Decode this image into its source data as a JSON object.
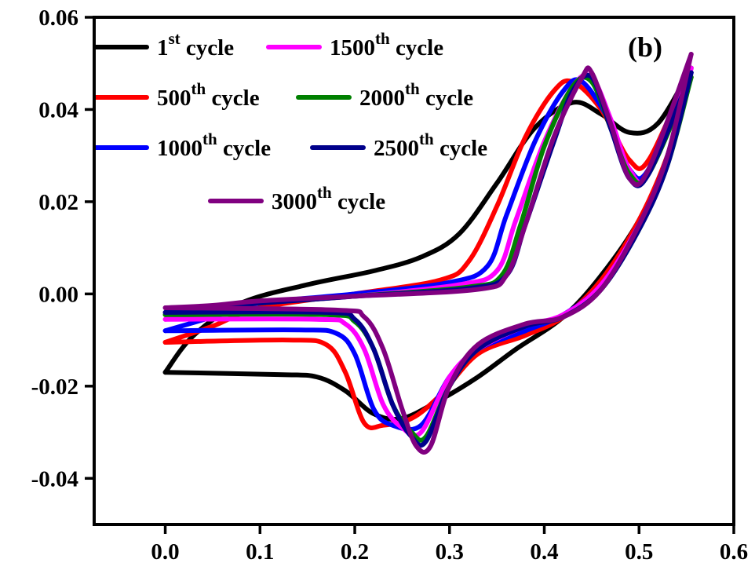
{
  "chart_data": {
    "type": "line",
    "title": "",
    "xlabel": "",
    "ylabel": "",
    "panel_label": "(b)",
    "xlim": [
      -0.075,
      0.6
    ],
    "ylim": [
      -0.05,
      0.06
    ],
    "x_ticks": [
      0.0,
      0.1,
      0.2,
      0.3,
      0.4,
      0.5,
      0.6
    ],
    "x_tick_labels": [
      "0.0",
      "0.1",
      "0.2",
      "0.3",
      "0.4",
      "0.5",
      "0.6"
    ],
    "y_ticks": [
      0.06,
      0.04,
      0.02,
      0.0,
      -0.02,
      -0.04
    ],
    "y_tick_labels": [
      "0.06",
      "0.04",
      "0.02",
      "0.00",
      "-0.02",
      "-0.04"
    ],
    "grid": false,
    "legend_position": "top-left",
    "series": [
      {
        "name": "1st cycle",
        "base": "1",
        "sup": "st",
        "color": "#000000",
        "upper": [
          [
            0.0,
            -0.017
          ],
          [
            0.03,
            -0.009
          ],
          [
            0.08,
            -0.002
          ],
          [
            0.15,
            0.002
          ],
          [
            0.22,
            0.005
          ],
          [
            0.27,
            0.008
          ],
          [
            0.31,
            0.013
          ],
          [
            0.35,
            0.024
          ],
          [
            0.39,
            0.036
          ],
          [
            0.43,
            0.0415
          ],
          [
            0.46,
            0.039
          ],
          [
            0.49,
            0.035
          ],
          [
            0.52,
            0.037
          ],
          [
            0.555,
            0.049
          ]
        ],
        "lower": [
          [
            0.0,
            -0.017
          ],
          [
            0.12,
            -0.0175
          ],
          [
            0.16,
            -0.018
          ],
          [
            0.19,
            -0.021
          ],
          [
            0.22,
            -0.026
          ],
          [
            0.25,
            -0.027
          ],
          [
            0.29,
            -0.023
          ],
          [
            0.33,
            -0.018
          ],
          [
            0.37,
            -0.012
          ],
          [
            0.42,
            -0.005
          ],
          [
            0.46,
            0.004
          ],
          [
            0.5,
            0.016
          ],
          [
            0.53,
            0.03
          ],
          [
            0.555,
            0.049
          ]
        ]
      },
      {
        "name": "500th cycle",
        "base": "500",
        "sup": "th",
        "color": "#ff0000",
        "upper": [
          [
            0.0,
            -0.0105
          ],
          [
            0.05,
            -0.007
          ],
          [
            0.1,
            -0.003
          ],
          [
            0.2,
            0.0
          ],
          [
            0.29,
            0.003
          ],
          [
            0.32,
            0.007
          ],
          [
            0.35,
            0.019
          ],
          [
            0.38,
            0.034
          ],
          [
            0.41,
            0.044
          ],
          [
            0.43,
            0.046
          ],
          [
            0.46,
            0.04
          ],
          [
            0.49,
            0.029
          ],
          [
            0.51,
            0.029
          ],
          [
            0.55,
            0.047
          ]
        ],
        "lower": [
          [
            0.0,
            -0.0105
          ],
          [
            0.13,
            -0.01
          ],
          [
            0.17,
            -0.011
          ],
          [
            0.19,
            -0.017
          ],
          [
            0.21,
            -0.028
          ],
          [
            0.23,
            -0.0285
          ],
          [
            0.26,
            -0.027
          ],
          [
            0.29,
            -0.022
          ],
          [
            0.33,
            -0.013
          ],
          [
            0.38,
            -0.009
          ],
          [
            0.42,
            -0.005
          ],
          [
            0.46,
            0.003
          ],
          [
            0.5,
            0.016
          ],
          [
            0.53,
            0.03
          ],
          [
            0.555,
            0.047
          ]
        ]
      },
      {
        "name": "1000th cycle",
        "base": "1000",
        "sup": "th",
        "color": "#0000ff",
        "upper": [
          [
            0.0,
            -0.008
          ],
          [
            0.05,
            -0.005
          ],
          [
            0.1,
            -0.002
          ],
          [
            0.2,
            0.0
          ],
          [
            0.3,
            0.0025
          ],
          [
            0.34,
            0.006
          ],
          [
            0.36,
            0.017
          ],
          [
            0.39,
            0.033
          ],
          [
            0.42,
            0.044
          ],
          [
            0.44,
            0.046
          ],
          [
            0.47,
            0.037
          ],
          [
            0.49,
            0.027
          ],
          [
            0.51,
            0.027
          ],
          [
            0.555,
            0.048
          ]
        ],
        "lower": [
          [
            0.0,
            -0.008
          ],
          [
            0.14,
            -0.0078
          ],
          [
            0.18,
            -0.0085
          ],
          [
            0.2,
            -0.013
          ],
          [
            0.22,
            -0.025
          ],
          [
            0.24,
            -0.0285
          ],
          [
            0.27,
            -0.0285
          ],
          [
            0.3,
            -0.018
          ],
          [
            0.33,
            -0.012
          ],
          [
            0.38,
            -0.008
          ],
          [
            0.42,
            -0.0045
          ],
          [
            0.46,
            0.002
          ],
          [
            0.5,
            0.015
          ],
          [
            0.53,
            0.029
          ],
          [
            0.555,
            0.048
          ]
        ]
      },
      {
        "name": "1500th cycle",
        "base": "1500",
        "sup": "th",
        "color": "#ff00ff",
        "upper": [
          [
            0.0,
            -0.0055
          ],
          [
            0.05,
            -0.004
          ],
          [
            0.1,
            -0.002
          ],
          [
            0.2,
            -0.0005
          ],
          [
            0.31,
            0.002
          ],
          [
            0.35,
            0.005
          ],
          [
            0.37,
            0.016
          ],
          [
            0.4,
            0.033
          ],
          [
            0.43,
            0.045
          ],
          [
            0.45,
            0.047
          ],
          [
            0.47,
            0.038
          ],
          [
            0.49,
            0.027
          ],
          [
            0.51,
            0.026
          ],
          [
            0.555,
            0.049
          ]
        ],
        "lower": [
          [
            0.0,
            -0.0055
          ],
          [
            0.16,
            -0.0055
          ],
          [
            0.19,
            -0.0065
          ],
          [
            0.21,
            -0.012
          ],
          [
            0.23,
            -0.024
          ],
          [
            0.25,
            -0.029
          ],
          [
            0.27,
            -0.03
          ],
          [
            0.3,
            -0.018
          ],
          [
            0.33,
            -0.012
          ],
          [
            0.38,
            -0.007
          ],
          [
            0.42,
            -0.0045
          ],
          [
            0.46,
            0.002
          ],
          [
            0.5,
            0.015
          ],
          [
            0.53,
            0.029
          ],
          [
            0.555,
            0.049
          ]
        ]
      },
      {
        "name": "2000th cycle",
        "base": "2000",
        "sup": "th",
        "color": "#008000",
        "upper": [
          [
            0.0,
            -0.0045
          ],
          [
            0.05,
            -0.003
          ],
          [
            0.1,
            -0.002
          ],
          [
            0.2,
            -0.0005
          ],
          [
            0.32,
            0.0015
          ],
          [
            0.355,
            0.004
          ],
          [
            0.375,
            0.015
          ],
          [
            0.4,
            0.032
          ],
          [
            0.43,
            0.045
          ],
          [
            0.45,
            0.046
          ],
          [
            0.47,
            0.036
          ],
          [
            0.49,
            0.026
          ],
          [
            0.51,
            0.026
          ],
          [
            0.555,
            0.047
          ]
        ],
        "lower": [
          [
            0.0,
            -0.0045
          ],
          [
            0.17,
            -0.0045
          ],
          [
            0.2,
            -0.006
          ],
          [
            0.22,
            -0.012
          ],
          [
            0.24,
            -0.024
          ],
          [
            0.26,
            -0.03
          ],
          [
            0.275,
            -0.031
          ],
          [
            0.3,
            -0.02
          ],
          [
            0.33,
            -0.012
          ],
          [
            0.38,
            -0.007
          ],
          [
            0.42,
            -0.005
          ],
          [
            0.46,
            0.001
          ],
          [
            0.5,
            0.014
          ],
          [
            0.53,
            0.028
          ],
          [
            0.555,
            0.047
          ]
        ]
      },
      {
        "name": "2500th cycle",
        "base": "2500",
        "sup": "th",
        "color": "#00008b",
        "upper": [
          [
            0.0,
            -0.004
          ],
          [
            0.05,
            -0.003
          ],
          [
            0.1,
            -0.002
          ],
          [
            0.2,
            -0.0005
          ],
          [
            0.32,
            0.0012
          ],
          [
            0.36,
            0.004
          ],
          [
            0.38,
            0.015
          ],
          [
            0.41,
            0.033
          ],
          [
            0.43,
            0.044
          ],
          [
            0.45,
            0.047
          ],
          [
            0.47,
            0.036
          ],
          [
            0.49,
            0.025
          ],
          [
            0.51,
            0.026
          ],
          [
            0.555,
            0.048
          ]
        ],
        "lower": [
          [
            0.0,
            -0.004
          ],
          [
            0.17,
            -0.004
          ],
          [
            0.2,
            -0.0055
          ],
          [
            0.22,
            -0.012
          ],
          [
            0.24,
            -0.024
          ],
          [
            0.26,
            -0.031
          ],
          [
            0.275,
            -0.032
          ],
          [
            0.3,
            -0.02
          ],
          [
            0.33,
            -0.012
          ],
          [
            0.38,
            -0.007
          ],
          [
            0.42,
            -0.005
          ],
          [
            0.46,
            0.001
          ],
          [
            0.5,
            0.014
          ],
          [
            0.53,
            0.028
          ],
          [
            0.555,
            0.048
          ]
        ]
      },
      {
        "name": "3000th cycle",
        "base": "3000",
        "sup": "th",
        "color": "#800080",
        "upper": [
          [
            0.0,
            -0.003
          ],
          [
            0.05,
            -0.0025
          ],
          [
            0.1,
            -0.0015
          ],
          [
            0.2,
            -0.0005
          ],
          [
            0.33,
            0.001
          ],
          [
            0.36,
            0.004
          ],
          [
            0.38,
            0.015
          ],
          [
            0.41,
            0.034
          ],
          [
            0.44,
            0.047
          ],
          [
            0.45,
            0.048
          ],
          [
            0.47,
            0.037
          ],
          [
            0.49,
            0.025
          ],
          [
            0.51,
            0.027
          ],
          [
            0.555,
            0.052
          ]
        ],
        "lower": [
          [
            0.0,
            -0.003
          ],
          [
            0.18,
            -0.0035
          ],
          [
            0.21,
            -0.005
          ],
          [
            0.23,
            -0.012
          ],
          [
            0.25,
            -0.025
          ],
          [
            0.265,
            -0.033
          ],
          [
            0.28,
            -0.033
          ],
          [
            0.3,
            -0.02
          ],
          [
            0.33,
            -0.011
          ],
          [
            0.38,
            -0.0065
          ],
          [
            0.42,
            -0.005
          ],
          [
            0.46,
            0.001
          ],
          [
            0.5,
            0.015
          ],
          [
            0.53,
            0.03
          ],
          [
            0.555,
            0.052
          ]
        ]
      }
    ]
  }
}
